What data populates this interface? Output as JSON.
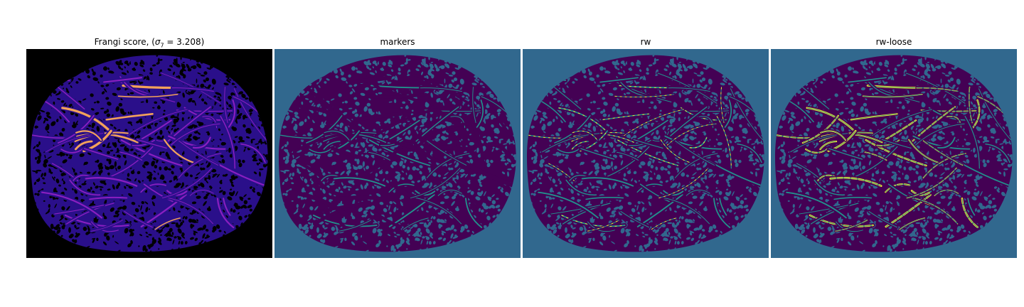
{
  "figure": {
    "panels": [
      {
        "title_prefix": "Frangi score, (",
        "sigma_symbol": "σ",
        "sigma_subscript": "7",
        "title_suffix": " = 3.208)",
        "colormap": "magma/plasma"
      },
      {
        "title": "markers",
        "colormap": "viridis"
      },
      {
        "title": "rw",
        "colormap": "viridis"
      },
      {
        "title": "rw-loose",
        "colormap": "viridis"
      }
    ],
    "colors": {
      "frangi_background": "#000000",
      "frangi_low": "#2a0f8a",
      "frangi_mid": "#8a1fc0",
      "frangi_high": "#f3a25a",
      "label_background": "#31688e",
      "label_tissue": "#440154",
      "label_marker": "#21918c",
      "label_vessel": "#fde725"
    }
  }
}
